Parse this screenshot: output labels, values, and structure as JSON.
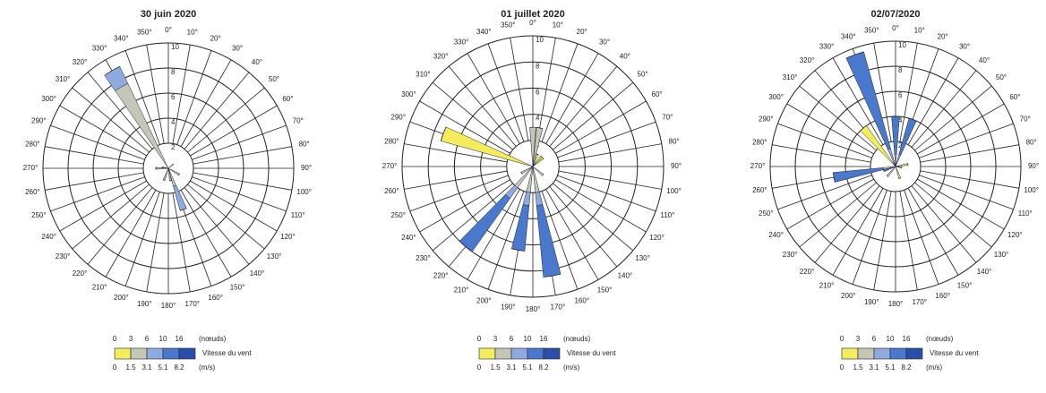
{
  "chart_data": [
    {
      "type": "windrose",
      "title": "30 juin 2020",
      "categories": [
        "0°",
        "10°",
        "20°",
        "30°",
        "40°",
        "50°",
        "60°",
        "70°",
        "80°",
        "90°",
        "100°",
        "110°",
        "120°",
        "130°",
        "140°",
        "150°",
        "160°",
        "170°",
        "180°",
        "190°",
        "200°",
        "210°",
        "220°",
        "230°",
        "240°",
        "250°",
        "260°",
        "270°",
        "280°",
        "290°",
        "300°",
        "310°",
        "320°",
        "330°",
        "340°",
        "350°"
      ],
      "series": [
        {
          "color": "#f3ec5c",
          "values": [
            0,
            0,
            0,
            0,
            0,
            0.5,
            0,
            0,
            0,
            0,
            0,
            0,
            0,
            0,
            0,
            0,
            0,
            0,
            0,
            0,
            0,
            0,
            0,
            0,
            0,
            0,
            0,
            0,
            0.5,
            0,
            0,
            0,
            0,
            0,
            0,
            0
          ]
        },
        {
          "color": "#c4c7b6",
          "values": [
            0,
            0,
            0,
            0,
            0,
            0,
            0,
            0,
            0,
            0,
            0,
            0,
            1,
            0,
            0,
            0,
            1.5,
            1,
            0,
            0,
            1,
            0,
            0,
            0,
            0,
            0,
            0,
            1,
            0,
            0,
            0,
            0,
            0,
            7.5,
            0,
            0
          ]
        },
        {
          "color": "#8eaadf",
          "values": [
            0,
            0,
            0,
            0,
            0,
            0,
            0,
            0,
            0,
            0,
            0,
            0,
            0,
            0,
            0,
            0,
            2,
            0,
            0,
            0,
            0,
            0,
            0,
            0,
            0,
            0,
            0,
            0,
            0,
            0,
            0,
            0,
            0,
            1.5,
            0,
            0
          ]
        },
        {
          "color": "#4a78cc",
          "values": [
            0,
            0,
            0,
            0,
            0,
            0,
            0,
            0,
            0,
            0,
            0,
            0,
            0,
            0,
            0,
            0,
            0,
            0,
            0,
            0,
            0,
            0,
            0,
            0,
            0,
            0,
            0,
            0,
            0,
            0,
            0,
            0,
            0,
            0,
            0,
            0
          ]
        },
        {
          "color": "#2a4fa8",
          "values": [
            0,
            0,
            0,
            0,
            0,
            0,
            0,
            0,
            0,
            0,
            0,
            0,
            0,
            0,
            0,
            0,
            0,
            0,
            0,
            0,
            0,
            0,
            0,
            0,
            0,
            0,
            0,
            0,
            0,
            0,
            0,
            0,
            0,
            0,
            0,
            0
          ]
        }
      ],
      "rlim": [
        0,
        10
      ],
      "rticks": [
        2,
        4,
        6,
        8,
        10
      ],
      "legend": {
        "title": "Vitesse du vent",
        "knots": [
          0,
          3,
          6,
          10,
          16
        ],
        "knots_unit": "(nœuds)",
        "ms": [
          0,
          1.5,
          3.1,
          5.1,
          8.2
        ],
        "ms_unit": "(m/s)"
      }
    },
    {
      "type": "windrose",
      "title": "01 juillet 2020",
      "categories": [
        "0°",
        "10°",
        "20°",
        "30°",
        "40°",
        "50°",
        "60°",
        "70°",
        "80°",
        "90°",
        "100°",
        "110°",
        "120°",
        "130°",
        "140°",
        "150°",
        "160°",
        "170°",
        "180°",
        "190°",
        "200°",
        "210°",
        "220°",
        "230°",
        "240°",
        "250°",
        "260°",
        "270°",
        "280°",
        "290°",
        "300°",
        "310°",
        "320°",
        "330°",
        "340°",
        "350°"
      ],
      "series": [
        {
          "color": "#f3ec5c",
          "values": [
            0,
            0,
            1,
            0,
            1,
            1,
            0,
            0,
            0,
            0,
            0,
            0,
            0,
            0,
            0,
            0,
            0,
            0,
            0,
            0,
            0,
            0,
            0,
            0,
            0,
            0,
            0,
            0,
            0,
            7.3,
            0,
            0,
            0,
            0,
            0,
            0
          ]
        },
        {
          "color": "#c4c7b6",
          "values": [
            3,
            3,
            0,
            0,
            0,
            0,
            0,
            0,
            0,
            0,
            0,
            0,
            0,
            1,
            0,
            0,
            0,
            2,
            0,
            2,
            0,
            0,
            2,
            0,
            1,
            0,
            0,
            0,
            0,
            0,
            0,
            0,
            0,
            0,
            0,
            0
          ]
        },
        {
          "color": "#8eaadf",
          "values": [
            0,
            0,
            0,
            0,
            0,
            0,
            0,
            0,
            0,
            0,
            0,
            0,
            0,
            0,
            0,
            0,
            0,
            1,
            0,
            1,
            0,
            0,
            1,
            0,
            0,
            0,
            0,
            0,
            0,
            0,
            0,
            0,
            0,
            0,
            0,
            0
          ]
        },
        {
          "color": "#4a78cc",
          "values": [
            0,
            0,
            0,
            0,
            0,
            0,
            0,
            0,
            0,
            0,
            0,
            0,
            0,
            0,
            0,
            0,
            0,
            5.5,
            0,
            3.5,
            0,
            0,
            5,
            0,
            0,
            0,
            0,
            0,
            0,
            0,
            0,
            0,
            0,
            0,
            0,
            0
          ]
        },
        {
          "color": "#2a4fa8",
          "values": [
            0,
            0,
            0,
            0,
            0,
            0,
            0,
            0,
            0,
            0,
            0,
            0,
            0,
            0,
            0,
            0,
            0,
            0,
            0,
            0,
            0,
            0,
            0,
            0,
            0,
            0,
            0,
            0,
            0,
            0,
            0,
            0,
            0,
            0,
            0,
            0
          ]
        }
      ],
      "rlim": [
        0,
        10
      ],
      "rticks": [
        2,
        4,
        6,
        8,
        10
      ],
      "legend": {
        "title": "Vitesse du vent",
        "knots": [
          0,
          3,
          6,
          10,
          16
        ],
        "knots_unit": "(nœuds)",
        "ms": [
          0,
          1.5,
          3.1,
          5.1,
          8.2
        ],
        "ms_unit": "(m/s)"
      }
    },
    {
      "type": "windrose",
      "title": "02/07/2020",
      "categories": [
        "0°",
        "10°",
        "20°",
        "30°",
        "40°",
        "50°",
        "60°",
        "70°",
        "80°",
        "90°",
        "100°",
        "110°",
        "120°",
        "130°",
        "140°",
        "150°",
        "160°",
        "170°",
        "180°",
        "190°",
        "200°",
        "210°",
        "220°",
        "230°",
        "240°",
        "250°",
        "260°",
        "270°",
        "280°",
        "290°",
        "300°",
        "310°",
        "320°",
        "330°",
        "340°",
        "350°"
      ],
      "series": [
        {
          "color": "#f3ec5c",
          "values": [
            0,
            0,
            0,
            0,
            0,
            0,
            0,
            0,
            1,
            0,
            0.5,
            0,
            0,
            0,
            0,
            0,
            1,
            0,
            0,
            0,
            0,
            0,
            0,
            0,
            0,
            0,
            0,
            0,
            0,
            0,
            0,
            0,
            4,
            0,
            0,
            0
          ]
        },
        {
          "color": "#c4c7b6",
          "values": [
            0,
            0,
            0,
            0,
            0,
            0,
            0,
            0,
            0,
            0,
            0,
            0,
            0,
            0,
            0,
            0,
            0,
            0,
            0,
            0,
            0,
            0,
            1,
            0,
            0,
            0,
            1,
            0,
            0,
            0,
            0,
            0,
            0,
            0,
            0,
            0
          ]
        },
        {
          "color": "#8eaadf",
          "values": [
            1,
            0,
            1,
            0,
            0,
            0,
            0,
            0,
            0,
            0,
            0,
            0,
            0,
            0,
            0,
            0,
            0,
            0,
            0,
            0,
            0,
            0,
            0,
            0,
            0,
            0,
            0,
            0,
            0,
            0,
            0,
            0,
            0,
            0,
            1.5,
            0
          ]
        },
        {
          "color": "#4a78cc",
          "values": [
            3,
            0,
            3,
            0,
            0,
            0,
            0,
            0,
            0,
            0,
            0,
            0,
            0,
            0,
            0,
            0,
            0,
            0,
            0,
            0,
            0,
            0,
            0,
            0,
            0,
            1,
            4,
            0,
            0,
            0,
            0,
            0,
            0,
            0,
            8,
            0
          ]
        },
        {
          "color": "#2a4fa8",
          "values": [
            0,
            0,
            0,
            0,
            0,
            0,
            0,
            0,
            0,
            0,
            0,
            0,
            0,
            0,
            0,
            0,
            0,
            0,
            0,
            0,
            0,
            0,
            0,
            0,
            0,
            0,
            0,
            0,
            0,
            0,
            0,
            0,
            0,
            0,
            0,
            0
          ]
        }
      ],
      "rlim": [
        0,
        10
      ],
      "rticks": [
        2,
        4,
        6,
        8,
        10
      ],
      "legend": {
        "title": "Vitesse du vent",
        "knots": [
          0,
          3,
          6,
          10,
          16
        ],
        "knots_unit": "(nœuds)",
        "ms": [
          0,
          1.5,
          3.1,
          5.1,
          8.2
        ],
        "ms_unit": "(m/s)"
      }
    }
  ]
}
